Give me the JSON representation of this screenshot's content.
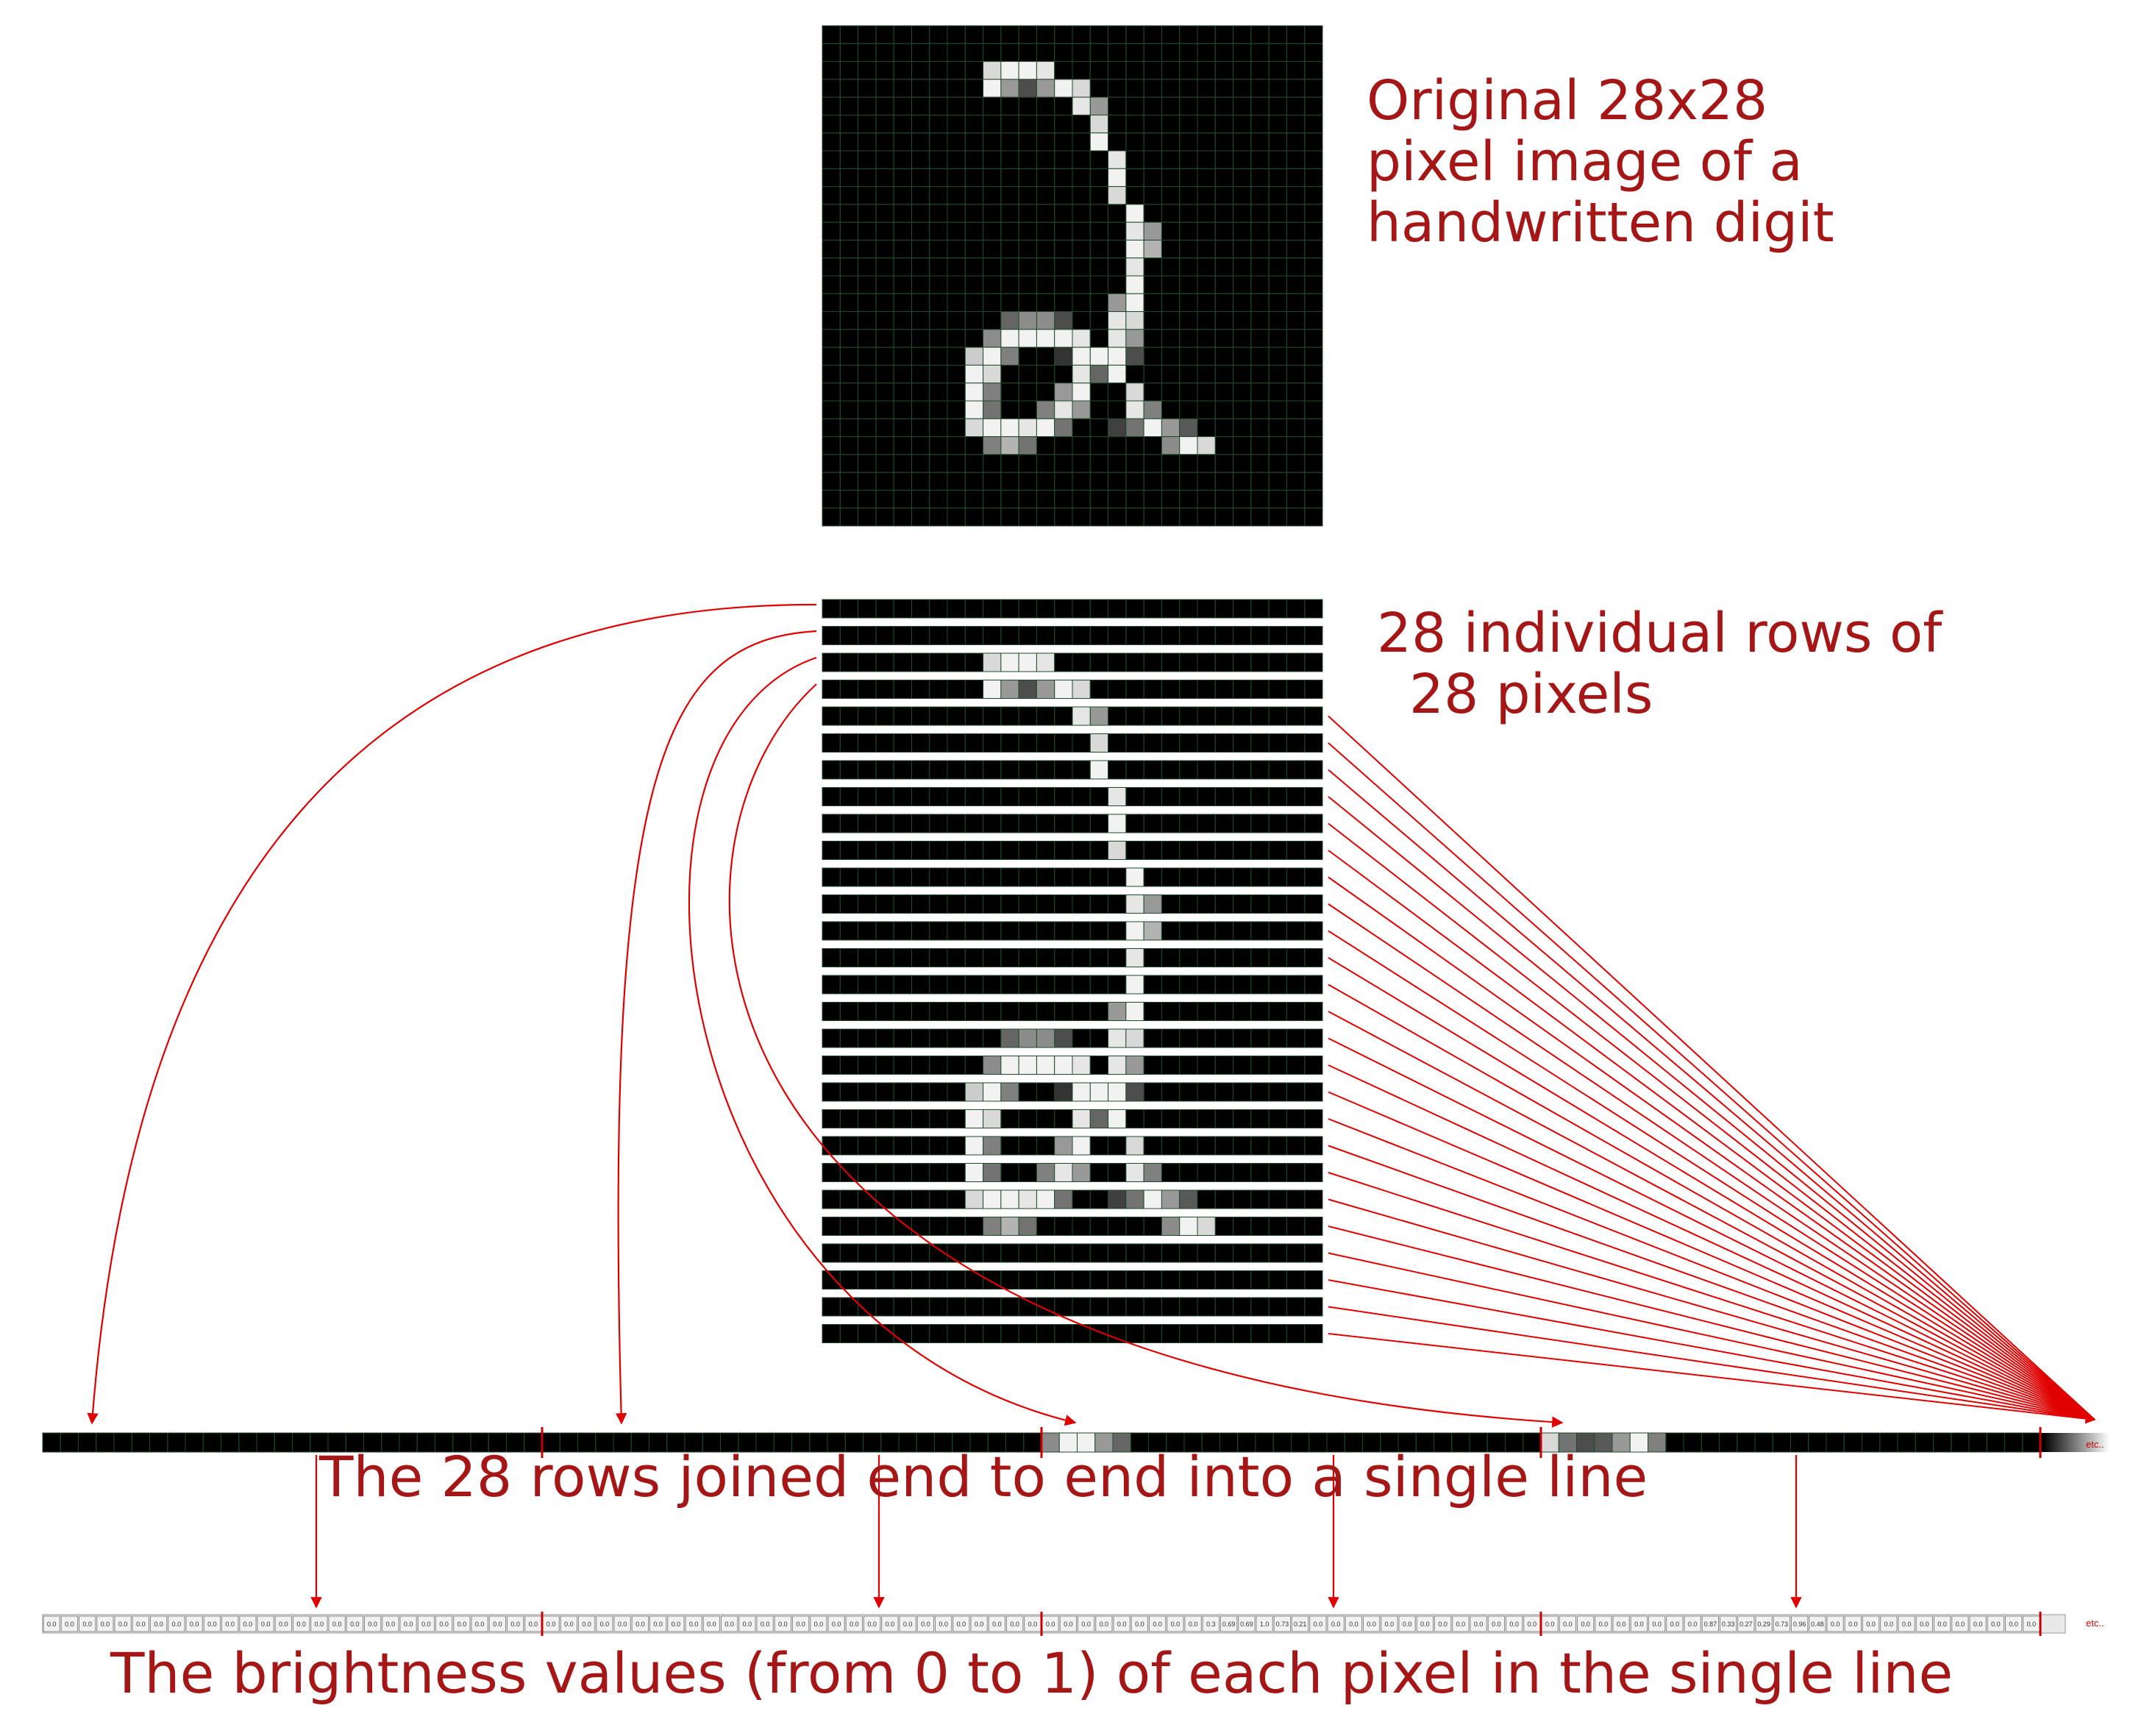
{
  "captions": {
    "original": [
      "Original 28x28",
      "pixel image of a",
      "handwritten digit"
    ],
    "rows": [
      "28 individual rows of",
      "28 pixels"
    ],
    "joined": "The 28 rows joined end to end into a single line",
    "values": "The brightness values (from 0 to 1) of each pixel in the single line"
  },
  "etc_label": "etc..",
  "colors": {
    "accent": "#cc0000",
    "caption": "#a51616",
    "pixel_bg": "#000000",
    "grid": "#1f4a2a"
  },
  "digit": {
    "size": 28,
    "pixels": [
      [
        2,
        9,
        0.85
      ],
      [
        2,
        10,
        0.95
      ],
      [
        2,
        11,
        0.95
      ],
      [
        2,
        12,
        0.9
      ],
      [
        3,
        9,
        0.95
      ],
      [
        3,
        10,
        0.6
      ],
      [
        3,
        11,
        0.3
      ],
      [
        3,
        12,
        0.6
      ],
      [
        3,
        13,
        0.95
      ],
      [
        3,
        14,
        0.85
      ],
      [
        4,
        14,
        0.9
      ],
      [
        4,
        15,
        0.6
      ],
      [
        5,
        15,
        0.85
      ],
      [
        6,
        15,
        0.95
      ],
      [
        7,
        16,
        0.9
      ],
      [
        8,
        16,
        0.95
      ],
      [
        9,
        16,
        0.85
      ],
      [
        10,
        17,
        0.95
      ],
      [
        11,
        17,
        0.9
      ],
      [
        11,
        18,
        0.6
      ],
      [
        12,
        17,
        0.95
      ],
      [
        12,
        18,
        0.7
      ],
      [
        13,
        17,
        0.9
      ],
      [
        14,
        17,
        0.95
      ],
      [
        15,
        16,
        0.6
      ],
      [
        15,
        17,
        0.95
      ],
      [
        16,
        10,
        0.4
      ],
      [
        16,
        11,
        0.55
      ],
      [
        16,
        12,
        0.55
      ],
      [
        16,
        13,
        0.3
      ],
      [
        16,
        16,
        0.9
      ],
      [
        16,
        17,
        0.85
      ],
      [
        17,
        9,
        0.55
      ],
      [
        17,
        10,
        0.95
      ],
      [
        17,
        11,
        0.95
      ],
      [
        17,
        12,
        0.95
      ],
      [
        17,
        13,
        0.95
      ],
      [
        17,
        14,
        0.9
      ],
      [
        17,
        16,
        0.9
      ],
      [
        17,
        17,
        0.6
      ],
      [
        18,
        8,
        0.8
      ],
      [
        18,
        9,
        0.95
      ],
      [
        18,
        10,
        0.5
      ],
      [
        18,
        13,
        0.2
      ],
      [
        18,
        14,
        0.95
      ],
      [
        18,
        15,
        0.95
      ],
      [
        18,
        16,
        0.95
      ],
      [
        18,
        17,
        0.3
      ],
      [
        19,
        8,
        0.95
      ],
      [
        19,
        9,
        0.85
      ],
      [
        19,
        14,
        0.9
      ],
      [
        19,
        15,
        0.4
      ],
      [
        19,
        16,
        0.95
      ],
      [
        20,
        8,
        0.95
      ],
      [
        20,
        9,
        0.5
      ],
      [
        20,
        13,
        0.6
      ],
      [
        20,
        14,
        0.95
      ],
      [
        20,
        17,
        0.85
      ],
      [
        21,
        8,
        0.95
      ],
      [
        21,
        9,
        0.45
      ],
      [
        21,
        12,
        0.5
      ],
      [
        21,
        13,
        0.9
      ],
      [
        21,
        14,
        0.6
      ],
      [
        21,
        17,
        0.9
      ],
      [
        21,
        18,
        0.5
      ],
      [
        22,
        8,
        0.85
      ],
      [
        22,
        9,
        0.95
      ],
      [
        22,
        10,
        0.95
      ],
      [
        22,
        11,
        0.9
      ],
      [
        22,
        12,
        0.95
      ],
      [
        22,
        13,
        0.45
      ],
      [
        22,
        16,
        0.25
      ],
      [
        22,
        17,
        0.45
      ],
      [
        22,
        18,
        0.95
      ],
      [
        22,
        19,
        0.6
      ],
      [
        22,
        20,
        0.35
      ],
      [
        23,
        9,
        0.5
      ],
      [
        23,
        10,
        0.7
      ],
      [
        23,
        11,
        0.45
      ],
      [
        23,
        19,
        0.55
      ],
      [
        23,
        20,
        0.95
      ],
      [
        23,
        21,
        0.85
      ]
    ]
  },
  "line_segments": [
    {
      "start": 56,
      "cells": [
        0.55,
        0.95,
        0.95,
        0.6,
        0.4
      ]
    },
    {
      "start": 84,
      "cells": [
        0.85,
        0.45,
        0.3,
        0.35,
        0.6,
        0.95,
        0.5
      ]
    }
  ],
  "value_segments": [
    {
      "start": 65,
      "cells": [
        "0.3",
        "0.69",
        "0.69",
        "1.0",
        "0.73",
        "0.21"
      ]
    },
    {
      "start": 93,
      "cells": [
        "0.87",
        "0.33",
        "0.27",
        "0.29",
        "0.73",
        "0.96",
        "0.48"
      ]
    }
  ],
  "zero_label": "0.0"
}
